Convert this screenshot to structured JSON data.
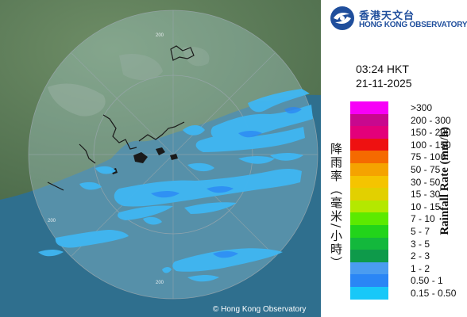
{
  "brand": {
    "name_zh": "香港天文台",
    "name_en": "HONG KONG OBSERVATORY",
    "color": "#1f4e9c"
  },
  "timestamp": {
    "time": "03:24 HKT",
    "date": "21-11-2025"
  },
  "radar": {
    "ring_labels": [
      "200",
      "200",
      "200"
    ],
    "copyright": "© Hong Kong Observatory",
    "echo_color": "#3fb6f2"
  },
  "legend": {
    "title_en": "Rainfall Rate (mm/h)",
    "title_zh": "降雨率（毫米/小時）",
    "items": [
      {
        "label": ">300",
        "color": "#f700f7"
      },
      {
        "label": "200 - 300",
        "color": "#c8088e"
      },
      {
        "label": "150 - 200",
        "color": "#e3007a"
      },
      {
        "label": "100 - 150",
        "color": "#ee1111"
      },
      {
        "label": "75 - 100",
        "color": "#f56a00"
      },
      {
        "label": "50 - 75",
        "color": "#f5a300"
      },
      {
        "label": "30 - 50",
        "color": "#f5c400"
      },
      {
        "label": "15 - 30",
        "color": "#e2d000"
      },
      {
        "label": "10 - 15",
        "color": "#b4e800"
      },
      {
        "label": "7 - 10",
        "color": "#5cea00"
      },
      {
        "label": "5 - 7",
        "color": "#22d41a"
      },
      {
        "label": "3 - 5",
        "color": "#13b83c"
      },
      {
        "label": "2 - 3",
        "color": "#0e9a4a"
      },
      {
        "label": "1 - 2",
        "color": "#4a9cf0"
      },
      {
        "label": "0.50 - 1",
        "color": "#2a86f5"
      },
      {
        "label": "0.15 - 0.50",
        "color": "#18c8f8"
      }
    ]
  }
}
